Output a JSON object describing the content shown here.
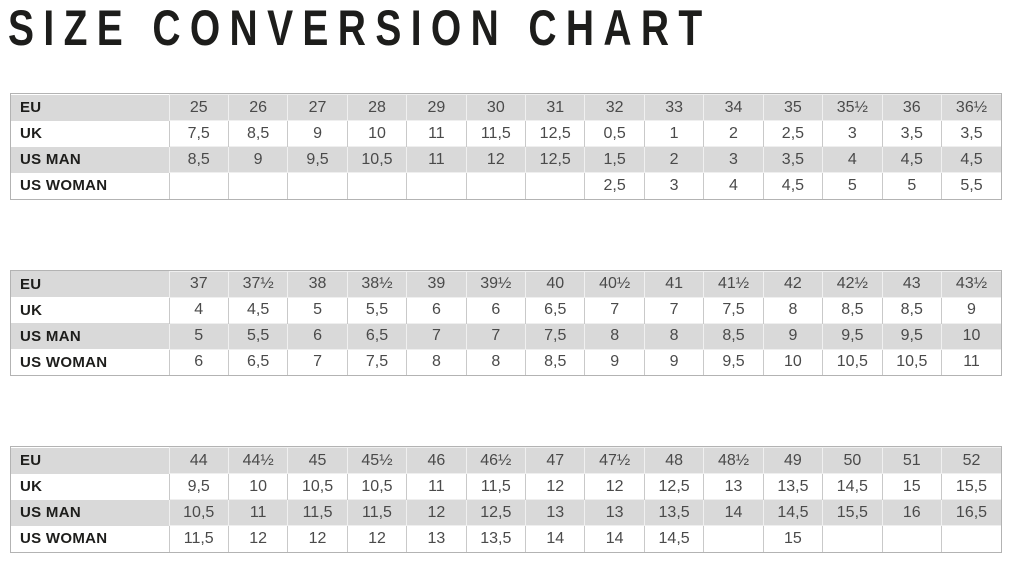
{
  "title": "SIZE CONVERSION CHART",
  "colors": {
    "row_shade": "#d9d9d9",
    "label_text": "#1d1d1b",
    "value_text": "#4a4a4a",
    "table_border": "#b3b3b3"
  },
  "tables": [
    {
      "rows": [
        {
          "label": "EU",
          "values": [
            "25",
            "26",
            "27",
            "28",
            "29",
            "30",
            "31",
            "32",
            "33",
            "34",
            "35",
            "35½",
            "36",
            "36½"
          ]
        },
        {
          "label": "UK",
          "values": [
            "7,5",
            "8,5",
            "9",
            "10",
            "11",
            "11,5",
            "12,5",
            "0,5",
            "1",
            "2",
            "2,5",
            "3",
            "3,5",
            "3,5"
          ]
        },
        {
          "label": "US MAN",
          "values": [
            "8,5",
            "9",
            "9,5",
            "10,5",
            "11",
            "12",
            "12,5",
            "1,5",
            "2",
            "3",
            "3,5",
            "4",
            "4,5",
            "4,5"
          ]
        },
        {
          "label": "US WOMAN",
          "values": [
            "",
            "",
            "",
            "",
            "",
            "",
            "",
            "2,5",
            "3",
            "4",
            "4,5",
            "5",
            "5",
            "5,5"
          ]
        }
      ]
    },
    {
      "rows": [
        {
          "label": "EU",
          "values": [
            "37",
            "37½",
            "38",
            "38½",
            "39",
            "39½",
            "40",
            "40½",
            "41",
            "41½",
            "42",
            "42½",
            "43",
            "43½"
          ]
        },
        {
          "label": "UK",
          "values": [
            "4",
            "4,5",
            "5",
            "5,5",
            "6",
            "6",
            "6,5",
            "7",
            "7",
            "7,5",
            "8",
            "8,5",
            "8,5",
            "9"
          ]
        },
        {
          "label": "US MAN",
          "values": [
            "5",
            "5,5",
            "6",
            "6,5",
            "7",
            "7",
            "7,5",
            "8",
            "8",
            "8,5",
            "9",
            "9,5",
            "9,5",
            "10"
          ]
        },
        {
          "label": "US WOMAN",
          "values": [
            "6",
            "6,5",
            "7",
            "7,5",
            "8",
            "8",
            "8,5",
            "9",
            "9",
            "9,5",
            "10",
            "10,5",
            "10,5",
            "11"
          ]
        }
      ]
    },
    {
      "rows": [
        {
          "label": "EU",
          "values": [
            "44",
            "44½",
            "45",
            "45½",
            "46",
            "46½",
            "47",
            "47½",
            "48",
            "48½",
            "49",
            "50",
            "51",
            "52"
          ]
        },
        {
          "label": "UK",
          "values": [
            "9,5",
            "10",
            "10,5",
            "10,5",
            "11",
            "11,5",
            "12",
            "12",
            "12,5",
            "13",
            "13,5",
            "14,5",
            "15",
            "15,5"
          ]
        },
        {
          "label": "US MAN",
          "values": [
            "10,5",
            "11",
            "11,5",
            "11,5",
            "12",
            "12,5",
            "13",
            "13",
            "13,5",
            "14",
            "14,5",
            "15,5",
            "16",
            "16,5"
          ]
        },
        {
          "label": "US WOMAN",
          "values": [
            "11,5",
            "12",
            "12",
            "12",
            "13",
            "13,5",
            "14",
            "14",
            "14,5",
            "",
            "15",
            "",
            "",
            ""
          ]
        }
      ]
    }
  ]
}
